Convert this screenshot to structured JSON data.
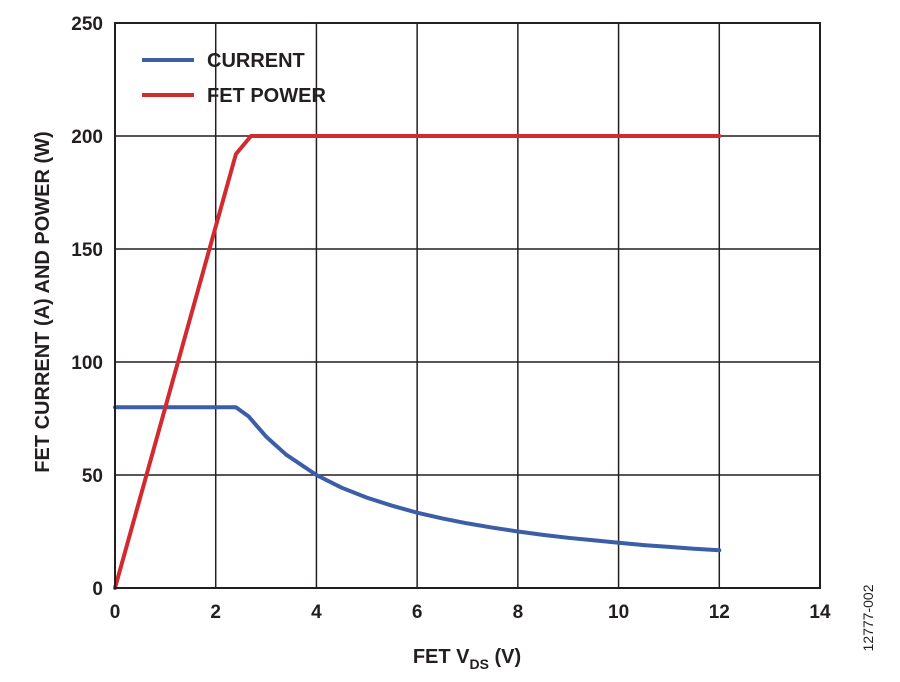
{
  "chart_data": {
    "type": "line",
    "xlabel_main": "FET V",
    "xlabel_sub": "DS",
    "xlabel_tail": " (V)",
    "ylabel": "FET CURRENT (A) AND POWER (W)",
    "xlim": [
      0,
      14
    ],
    "ylim": [
      0,
      250
    ],
    "x_ticks": [
      0,
      2,
      4,
      6,
      8,
      10,
      12,
      14
    ],
    "y_ticks": [
      0,
      50,
      100,
      150,
      200,
      250
    ],
    "grid": true,
    "legend_position": "top-left",
    "series": [
      {
        "name": "CURRENT",
        "color": "#3b5ea6",
        "x": [
          0,
          2.4,
          2.65,
          3.0,
          3.4,
          4.0,
          4.5,
          5.0,
          5.5,
          6.0,
          6.5,
          7.0,
          7.5,
          8.0,
          8.5,
          9.0,
          9.5,
          10.0,
          10.5,
          11.0,
          11.5,
          12.0
        ],
        "y": [
          80,
          80,
          76,
          67,
          59,
          50,
          44.4,
          40,
          36.4,
          33.3,
          30.8,
          28.6,
          26.7,
          25,
          23.5,
          22.2,
          21.1,
          20,
          19,
          18.2,
          17.4,
          16.7
        ]
      },
      {
        "name": "FET POWER",
        "color": "#d12a2f",
        "x": [
          0,
          2.4,
          2.7,
          12.0
        ],
        "y": [
          0,
          192,
          200,
          200
        ]
      }
    ]
  },
  "figure_id": "12777-002"
}
